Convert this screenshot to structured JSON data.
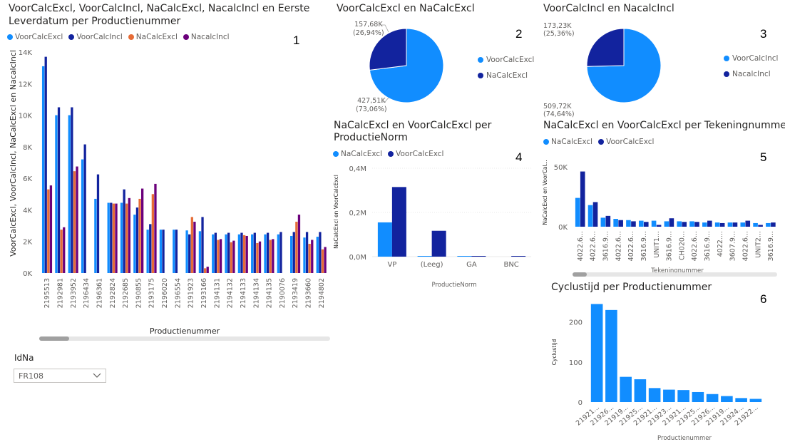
{
  "colors": {
    "c1": "#118DFF",
    "c2": "#12239E",
    "c3": "#E66C37",
    "c4": "#6B007B"
  },
  "panel1": {
    "title_line1": "VoorCalcExcl, VoorCalcIncl, NaCalcExcl, NacalcIncl en Eerste",
    "title_line2": "Leverdatum per Productienummer",
    "number": "1",
    "legend": [
      "VoorCalcExcl",
      "VoorCalcIncl",
      "NaCalcExcl",
      "NacalcIncl"
    ],
    "ylabel": "VoorCalcExcl, VoorCalcIncl, NaCalcExcl en NacalcIncl",
    "xlabel": "Productienummer",
    "yticks": [
      "0K",
      "2K",
      "4K",
      "6K",
      "8K",
      "10K",
      "12K",
      "14K"
    ]
  },
  "panel2": {
    "title": "VoorCalcExcl en NaCalcExcl",
    "number": "2",
    "legend": [
      "VoorCalcExcl",
      "NaCalcExcl"
    ],
    "label_top_value": "157,68K",
    "label_top_pct": "(26,94%)",
    "label_bottom_value": "427,51K",
    "label_bottom_pct": "(73,06%)"
  },
  "panel3": {
    "title": "VoorCalcIncl en NacalcIncl",
    "number": "3",
    "legend": [
      "VoorCalcIncl",
      "NacalcIncl"
    ],
    "label_top": "173,23K (25,36%)",
    "label_bottom": "509,72K (74,64%)"
  },
  "panel4": {
    "title_line1": "NaCalcExcl en VoorCalcExcl per",
    "title_line2": "ProductieNorm",
    "number": "4",
    "legend": [
      "NaCalcExcl",
      "VoorCalcExcl"
    ],
    "ylabel": "NaCalcExcl en VoorCalcExcl",
    "xlabel": "ProductieNorm",
    "yticks": [
      "0,0M",
      "0,2M",
      "0,4M"
    ]
  },
  "panel5": {
    "title": "NaCalcExcl en VoorCalcExcl per Tekeningnummer",
    "number": "5",
    "legend": [
      "NaCalcExcl",
      "VoorCalcExcl"
    ],
    "ylabel": "NaCalcExcl en VoorCal...",
    "xlabel": "Tekeningnummer",
    "yticks": [
      "0K",
      "50K"
    ]
  },
  "panel6": {
    "title": "Cyclustijd per Productienummer",
    "number": "6",
    "ylabel": "Cyclustijd",
    "xlabel": "Productienummer",
    "yticks": [
      "0",
      "100",
      "200"
    ]
  },
  "slicer": {
    "label": "IdNa",
    "value": "FR108"
  },
  "chart_data": [
    {
      "type": "bar",
      "categories": [
        "2195513",
        "2192981",
        "2193952",
        "2196434",
        "2196361",
        "2192824",
        "2192685",
        "2190855",
        "2193175",
        "2196020",
        "2196554",
        "2191923",
        "2193166",
        "2194131",
        "2194132",
        "2194133",
        "2194134",
        "2194135",
        "2190076",
        "2193419",
        "2193660",
        "2194802"
      ],
      "series": [
        {
          "name": "VoorCalcExcl",
          "values": [
            13100,
            10000,
            10000,
            7200,
            4700,
            4450,
            4450,
            3700,
            2750,
            2750,
            2750,
            2700,
            2650,
            2450,
            2450,
            2450,
            2450,
            2450,
            2450,
            2350,
            2250,
            2300
          ]
        },
        {
          "name": "VoorCalcIncl",
          "values": [
            13700,
            10500,
            10500,
            8150,
            6250,
            4450,
            5300,
            4150,
            3100,
            2750,
            2750,
            2450,
            3550,
            2550,
            2550,
            2550,
            2550,
            2550,
            2600,
            2600,
            2600,
            2600
          ]
        },
        {
          "name": "NaCalcExcl",
          "values": [
            5300,
            2750,
            6450,
            0,
            0,
            4400,
            4400,
            4700,
            5000,
            0,
            0,
            3550,
            300,
            2100,
            1950,
            2400,
            1900,
            2100,
            0,
            3250,
            1850,
            1500
          ]
        },
        {
          "name": "NacalcIncl",
          "values": [
            5550,
            2900,
            6750,
            0,
            0,
            4400,
            4750,
            5350,
            5650,
            0,
            0,
            3250,
            400,
            2150,
            2050,
            2350,
            2000,
            2150,
            0,
            3700,
            2100,
            1650
          ]
        }
      ],
      "title": "VoorCalcExcl, VoorCalcIncl, NaCalcExcl, NacalcIncl en Eerste Leverdatum per Productienummer",
      "xlabel": "Productienummer",
      "ylabel": "VoorCalcExcl, VoorCalcIncl, NaCalcExcl en NacalcIncl",
      "ylim": [
        0,
        14000
      ]
    },
    {
      "type": "pie",
      "categories": [
        "VoorCalcExcl",
        "NaCalcExcl"
      ],
      "values": [
        427510,
        157680
      ],
      "title": "VoorCalcExcl en NaCalcExcl"
    },
    {
      "type": "pie",
      "categories": [
        "VoorCalcIncl",
        "NacalcIncl"
      ],
      "values": [
        509720,
        173230
      ],
      "title": "VoorCalcIncl en NacalcIncl"
    },
    {
      "type": "bar",
      "categories": [
        "VP",
        "(Leeg)",
        "GA",
        "BNC"
      ],
      "series": [
        {
          "name": "NaCalcExcl",
          "values": [
            155000,
            2000,
            1500,
            0
          ]
        },
        {
          "name": "VoorCalcExcl",
          "values": [
            315000,
            117000,
            2000,
            1500
          ]
        }
      ],
      "title": "NaCalcExcl en VoorCalcExcl per ProductieNorm",
      "xlabel": "ProductieNorm",
      "ylabel": "NaCalcExcl en VoorCalcExcl",
      "ylim": [
        0,
        400000
      ]
    },
    {
      "type": "bar",
      "categories": [
        "4022.6...",
        "4022.6...",
        "3616.9...",
        "4022.6...",
        "4022.6...",
        "3616.9...",
        "UNIT1...",
        "3616.9...",
        "CH020...",
        "4022.6...",
        "3616.9...",
        "4022....",
        "3607.9...",
        "4022.6...",
        "UNIT2...",
        "3616.9..."
      ],
      "series": [
        {
          "name": "NaCalcExcl",
          "values": [
            24000,
            18000,
            7500,
            6500,
            5500,
            5000,
            5000,
            4500,
            4500,
            4500,
            3500,
            3500,
            3500,
            3500,
            3000,
            3000
          ]
        },
        {
          "name": "VoorCalcExcl",
          "values": [
            46000,
            20500,
            9000,
            5500,
            4500,
            4000,
            1500,
            7000,
            4000,
            4000,
            5000,
            3000,
            3500,
            5000,
            1500,
            3500
          ]
        }
      ],
      "title": "NaCalcExcl en VoorCalcExcl per Tekeningnummer",
      "xlabel": "Tekeningnummer",
      "ylabel": "NaCalcExcl en VoorCal...",
      "ylim": [
        0,
        60000
      ]
    },
    {
      "type": "bar",
      "categories": [
        "21921...",
        "21926...",
        "21919...",
        "21925...",
        "21921...",
        "21923...",
        "21921...",
        "21925...",
        "21926...",
        "21919...",
        "21924...",
        "21922..."
      ],
      "values": [
        245,
        230,
        63,
        57,
        35,
        31,
        30,
        25,
        20,
        15,
        10,
        8
      ],
      "title": "Cyclustijd per Productienummer",
      "xlabel": "Productienummer",
      "ylabel": "Cyclustijd",
      "ylim": [
        0,
        260
      ]
    }
  ]
}
